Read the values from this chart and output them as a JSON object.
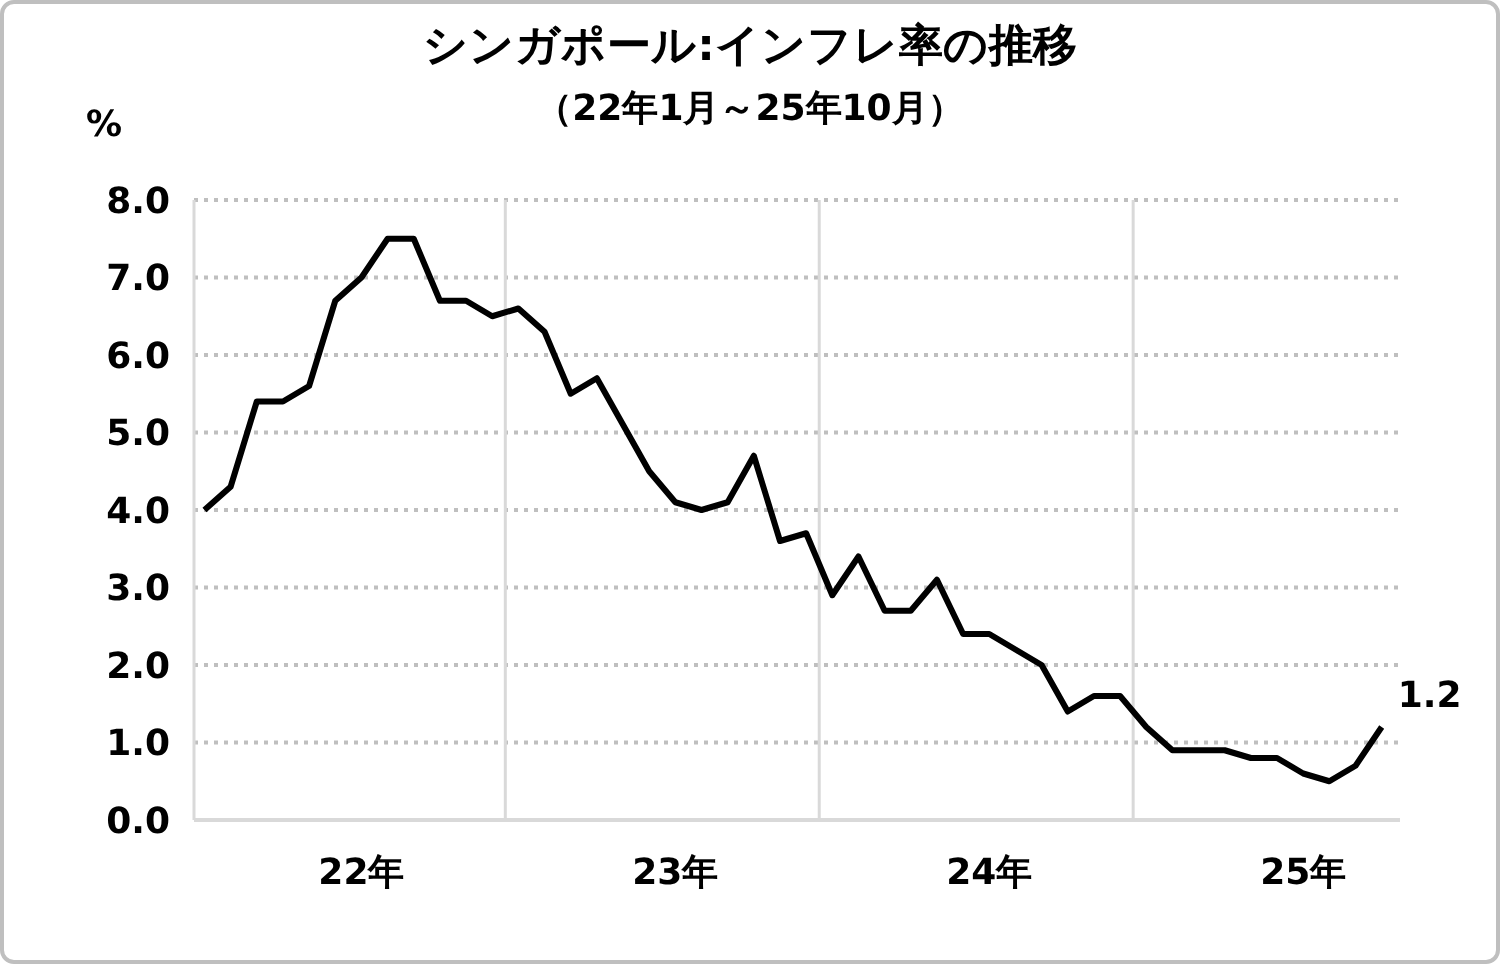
{
  "chart_data": {
    "type": "line",
    "title": "シンガポール:インフレ率の推移",
    "subtitle": "（22年1月～25年10月）",
    "ylabel": "%",
    "categories": [
      null,
      null,
      null,
      null,
      null,
      null,
      "22年",
      null,
      null,
      null,
      null,
      null,
      null,
      null,
      null,
      null,
      null,
      null,
      "23年",
      null,
      null,
      null,
      null,
      null,
      null,
      null,
      null,
      null,
      null,
      null,
      "24年",
      null,
      null,
      null,
      null,
      null,
      null,
      null,
      null,
      null,
      null,
      null,
      "25年",
      null,
      null,
      null
    ],
    "series": [
      {
        "color": "#000000",
        "value_labels": [
          null,
          null,
          null,
          null,
          null,
          null,
          null,
          null,
          null,
          null,
          null,
          null,
          null,
          null,
          null,
          null,
          null,
          null,
          null,
          null,
          null,
          null,
          null,
          null,
          null,
          null,
          null,
          null,
          null,
          null,
          null,
          null,
          null,
          null,
          null,
          null,
          null,
          null,
          null,
          null,
          null,
          null,
          null,
          null,
          null,
          "1.2"
        ],
        "values": [
          4.0,
          4.3,
          5.4,
          5.4,
          5.6,
          6.7,
          7.0,
          7.5,
          7.5,
          6.7,
          6.7,
          6.5,
          6.6,
          6.3,
          5.5,
          5.7,
          5.1,
          4.5,
          4.1,
          4.0,
          4.1,
          4.7,
          3.6,
          3.7,
          2.9,
          3.4,
          2.7,
          2.7,
          3.1,
          2.4,
          2.4,
          2.2,
          2.0,
          1.4,
          1.6,
          1.6,
          1.2,
          0.9,
          0.9,
          0.9,
          0.8,
          0.8,
          0.6,
          0.5,
          0.7,
          1.2
        ]
      }
    ],
    "ylim": [
      0,
      8
    ],
    "yticks": [
      {
        "value": 0,
        "label": "0.0"
      },
      {
        "value": 1,
        "label": "1.0"
      },
      {
        "value": 2,
        "label": "2.0"
      },
      {
        "value": 3,
        "label": "3.0"
      },
      {
        "value": 4,
        "label": "4.0"
      },
      {
        "value": 5,
        "label": "5.0"
      },
      {
        "value": 6,
        "label": "6.0"
      },
      {
        "value": 7,
        "label": "7.0"
      },
      {
        "value": 8,
        "label": "8.0"
      }
    ],
    "grid": true,
    "marker": "none",
    "line_style": "solid"
  }
}
